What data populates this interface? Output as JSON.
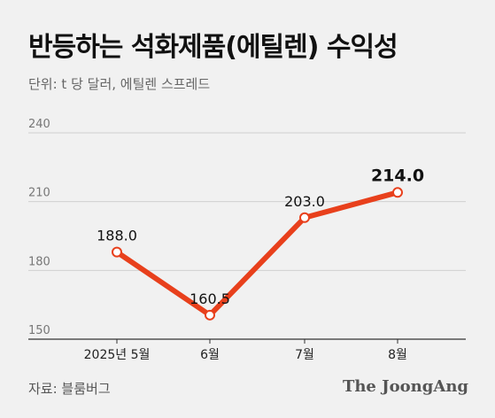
{
  "header": {
    "title": "반등하는 석화제품(에틸렌) 수익성",
    "unit": "단위: t 당 달러, 에틸렌 스프레드"
  },
  "footer": {
    "source": "자료: 블룸버그",
    "brand": "The JoongAng"
  },
  "colors": {
    "line": "#e8401c",
    "background": "#f1f1f1",
    "grid": "#cfcfcf"
  },
  "chart_data": {
    "type": "line",
    "categories": [
      "2025년 5월",
      "6월",
      "7월",
      "8월"
    ],
    "series": [
      {
        "values": [
          188.0,
          160.5,
          203.0,
          214.0
        ]
      }
    ],
    "data_labels": [
      "188.0",
      "160.5",
      "203.0",
      "214.0"
    ],
    "highlight_last": true,
    "yticks": [
      150,
      180,
      210,
      240
    ],
    "ylim": [
      150,
      240
    ],
    "grid": "horizontal"
  }
}
